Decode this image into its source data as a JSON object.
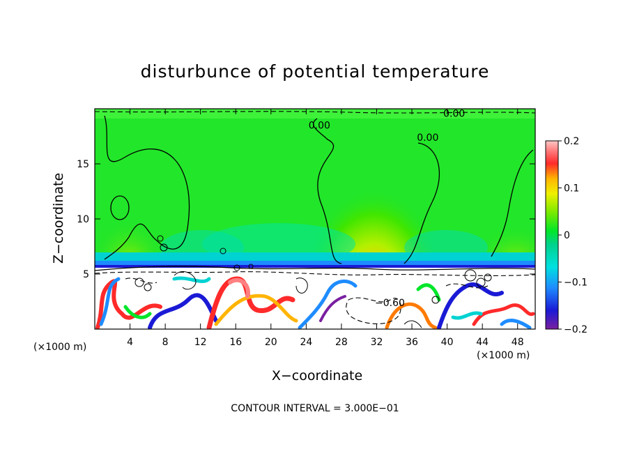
{
  "chart_data": {
    "type": "heatmap",
    "title": "disturbunce of potential temperature",
    "xlabel": "X−coordinate",
    "ylabel": "Z−coordinate",
    "x_unit_left": "(×1000 m)",
    "x_unit_right": "(×1000 m)",
    "x_ticks": [
      "4",
      "8",
      "12",
      "16",
      "20",
      "24",
      "28",
      "32",
      "36",
      "40",
      "44",
      "48"
    ],
    "x_tick_values": [
      4,
      8,
      12,
      16,
      20,
      24,
      28,
      32,
      36,
      40,
      44,
      48
    ],
    "y_ticks": [
      "5",
      "10",
      "15"
    ],
    "y_tick_values": [
      5,
      10,
      15
    ],
    "xlim": [
      0,
      50
    ],
    "ylim": [
      0,
      20
    ],
    "colorbar": {
      "ticks": [
        "0.2",
        "0.1",
        "0",
        "−0.1",
        "−0.2"
      ],
      "tick_values": [
        0.2,
        0.1,
        0,
        -0.1,
        -0.2
      ],
      "range": [
        -0.2,
        0.2
      ]
    },
    "contour_labels": [
      {
        "text": "0.00",
        "x": 25.5,
        "z": 18.5
      },
      {
        "text": "0.00",
        "x": 37.8,
        "z": 17.4
      },
      {
        "text": "0.00",
        "x": 40.8,
        "z": 19.6
      },
      {
        "text": "−0.60",
        "x": 33.5,
        "z": 2.4
      }
    ],
    "contour_interval_text": "CONTOUR INTERVAL = 3.000E−01"
  }
}
